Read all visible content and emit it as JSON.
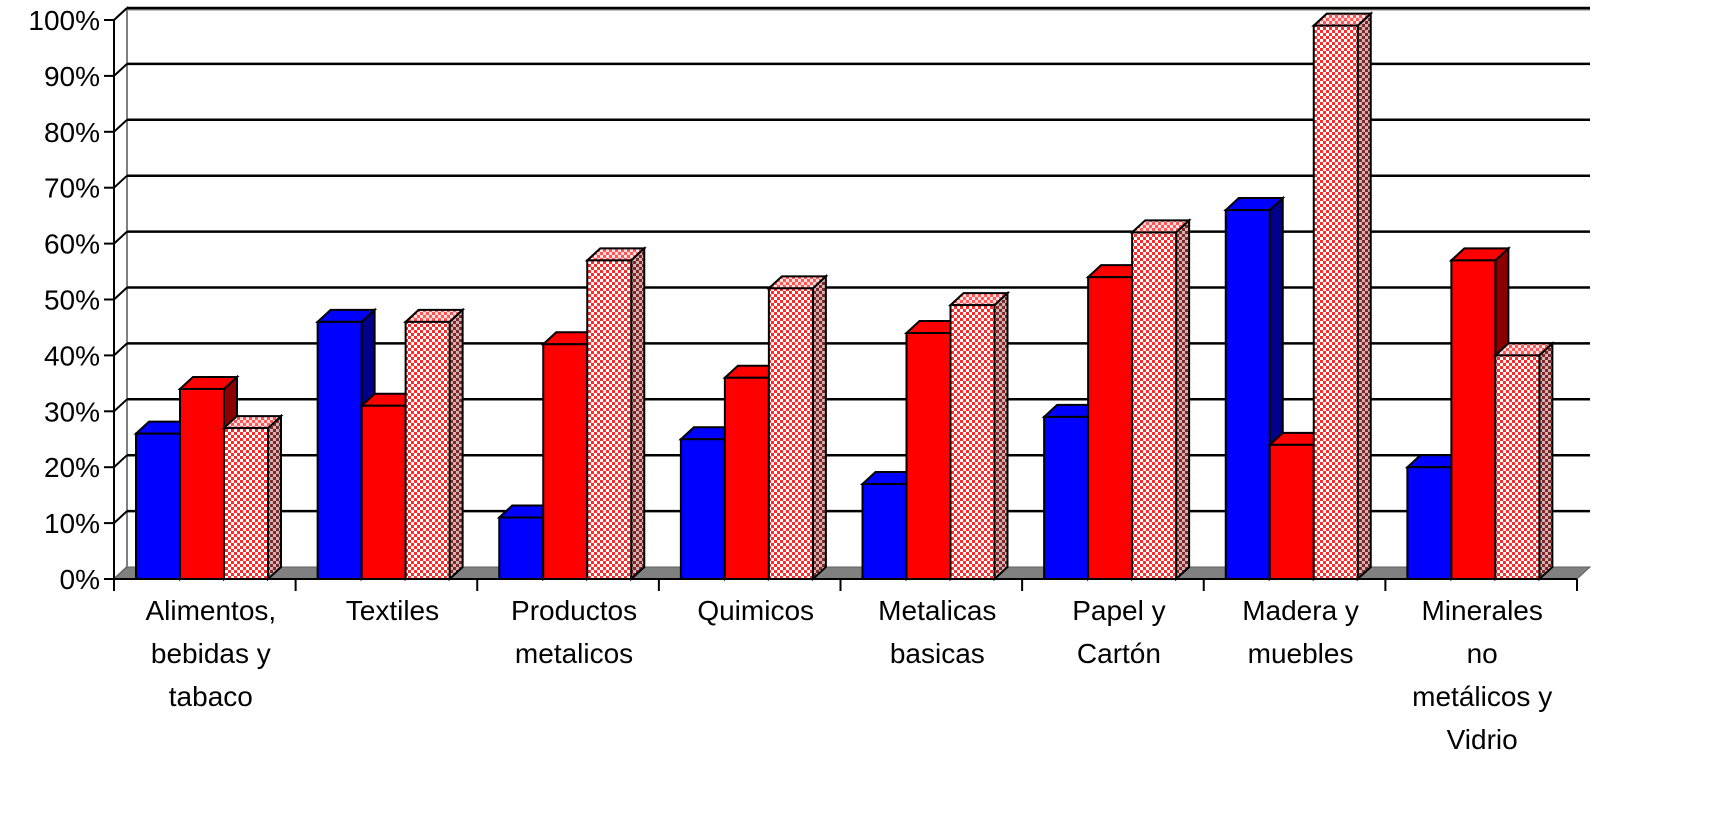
{
  "chart_data": {
    "type": "bar",
    "title": "",
    "xlabel": "",
    "ylabel": "",
    "ylim": [
      0,
      100
    ],
    "y_ticks": [
      "0%",
      "10%",
      "20%",
      "30%",
      "40%",
      "50%",
      "60%",
      "70%",
      "80%",
      "90%",
      "100%"
    ],
    "grid": true,
    "style": "3d-clustered-column",
    "categories": [
      [
        "Alimentos,",
        "bebidas y",
        "tabaco"
      ],
      [
        "Textiles"
      ],
      [
        "Productos",
        "metalicos"
      ],
      [
        "Quimicos"
      ],
      [
        "Metalicas",
        "basicas"
      ],
      [
        "Papel y",
        "Cartón"
      ],
      [
        "Madera y",
        "muebles"
      ],
      [
        "Minerales",
        "no",
        "metálicos y",
        "Vidrio"
      ]
    ],
    "series": [
      {
        "color": "#0000ff",
        "side_color": "#00008b",
        "pattern": "solid",
        "values": [
          26,
          46,
          11,
          25,
          17,
          29,
          66,
          20
        ]
      },
      {
        "color": "#ff0000",
        "side_color": "#8b0000",
        "pattern": "solid",
        "values": [
          34,
          31,
          42,
          36,
          44,
          54,
          24,
          57
        ]
      },
      {
        "color": "#ff0000",
        "side_color": "#8b4040",
        "pattern": "checker",
        "values": [
          27,
          46,
          57,
          52,
          49,
          62,
          99,
          40
        ]
      }
    ]
  }
}
